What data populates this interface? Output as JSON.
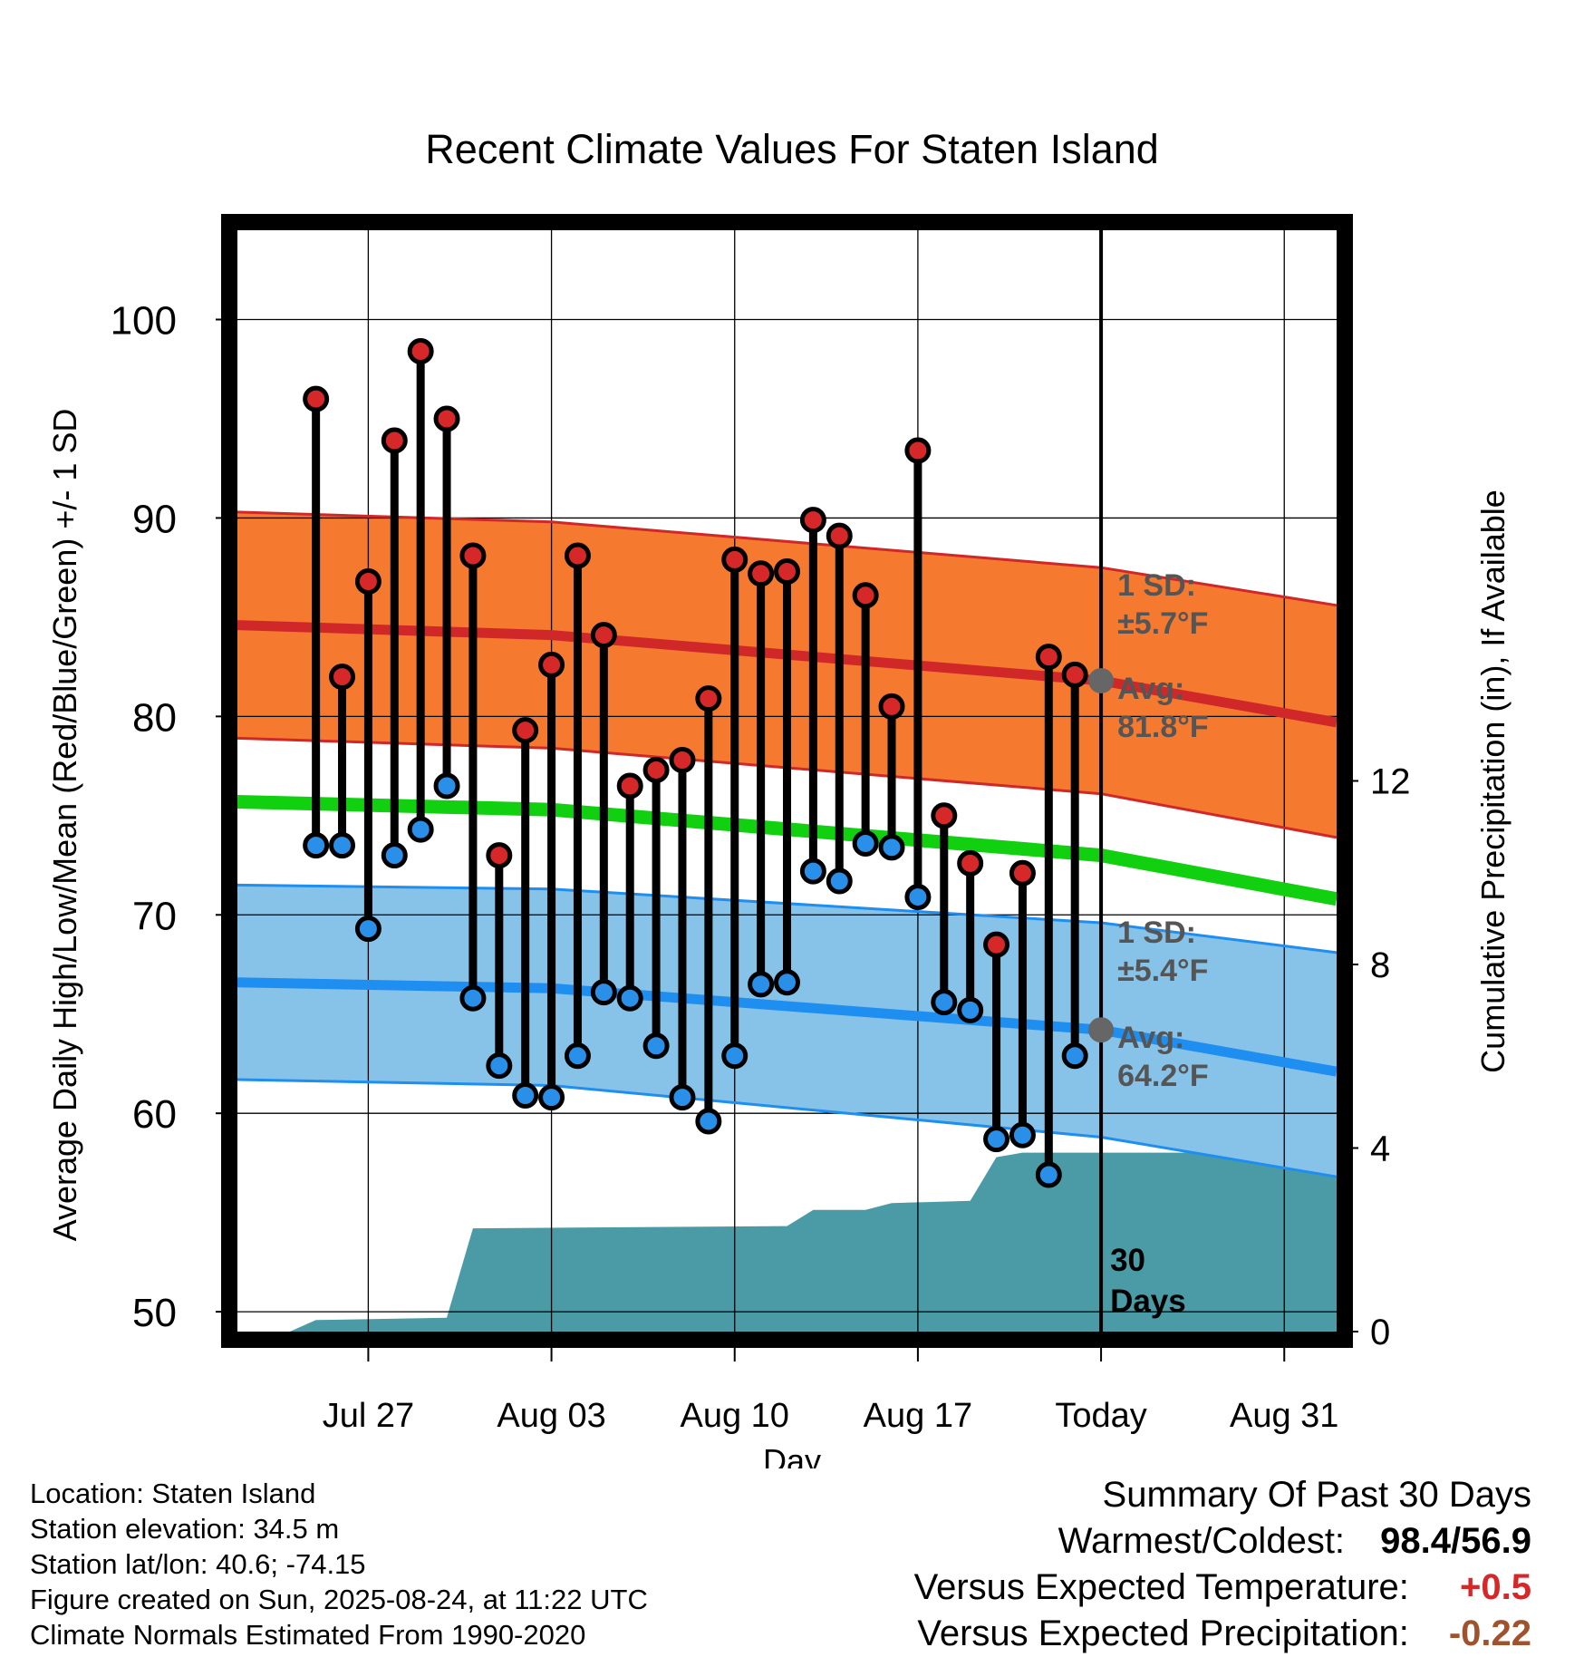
{
  "chart_data": {
    "type": "line",
    "title": "Recent Climate Values For Staten Island",
    "xlabel": "Day",
    "ylabel": "Average Daily High/Low/Mean (Red/Blue/Green) +/- 1 SD",
    "y2label": "Cumulative Precipitation (in), If Available",
    "ylim": [
      49,
      104.5
    ],
    "y2lim": [
      0,
      24
    ],
    "xlim": [
      "2025-07-22",
      "2025-09-02"
    ],
    "yticks": [
      "50",
      "60",
      "70",
      "80",
      "90",
      "100"
    ],
    "y2ticks": [
      "0",
      "4",
      "8",
      "12"
    ],
    "xticks": [
      {
        "date": "2025-07-27",
        "label": "Jul 27"
      },
      {
        "date": "2025-08-03",
        "label": "Aug 03"
      },
      {
        "date": "2025-08-10",
        "label": "Aug 10"
      },
      {
        "date": "2025-08-17",
        "label": "Aug 17"
      },
      {
        "date": "2025-08-24",
        "label": "Today"
      },
      {
        "date": "2025-08-31",
        "label": "Aug 31"
      }
    ],
    "grid": true,
    "today": "2025-08-24",
    "period_label": [
      "30",
      "Days"
    ],
    "normals": {
      "x": [
        "2025-07-21",
        "2025-08-03",
        "2025-08-24",
        "2025-09-02"
      ],
      "high_mean": [
        84.6,
        84.1,
        81.8,
        79.7
      ],
      "high_upper": [
        90.3,
        89.8,
        87.5,
        85.6
      ],
      "high_lower": [
        78.9,
        78.4,
        76.1,
        73.9
      ],
      "low_mean": [
        66.6,
        66.3,
        64.2,
        62.1
      ],
      "low_upper": [
        71.5,
        71.3,
        69.6,
        68.1
      ],
      "low_lower": [
        61.7,
        61.4,
        58.8,
        56.8
      ],
      "mean": [
        75.7,
        75.3,
        73.0,
        70.8
      ]
    },
    "annotations": [
      {
        "label_lines": [
          "1 SD:",
          "±5.7°F"
        ],
        "y": 87.0
      },
      {
        "label_lines": [
          "Avg:",
          "81.8°F"
        ],
        "y": 81.8
      },
      {
        "label_lines": [
          "1 SD:",
          "±5.4°F"
        ],
        "y": 69.5
      },
      {
        "label_lines": [
          "Avg:",
          "64.2°F"
        ],
        "y": 64.2
      }
    ],
    "today_markers": [
      81.8,
      64.2
    ],
    "series": [
      {
        "name": "High",
        "x": [
          "2025-07-25",
          "2025-07-26",
          "2025-07-27",
          "2025-07-28",
          "2025-07-29",
          "2025-07-30",
          "2025-07-31",
          "2025-08-01",
          "2025-08-02",
          "2025-08-03",
          "2025-08-04",
          "2025-08-05",
          "2025-08-06",
          "2025-08-07",
          "2025-08-08",
          "2025-08-09",
          "2025-08-10",
          "2025-08-11",
          "2025-08-12",
          "2025-08-13",
          "2025-08-14",
          "2025-08-15",
          "2025-08-16",
          "2025-08-17",
          "2025-08-18",
          "2025-08-19",
          "2025-08-20",
          "2025-08-21",
          "2025-08-22",
          "2025-08-23"
        ],
        "values": [
          96.0,
          82.0,
          86.8,
          93.9,
          98.4,
          95.0,
          88.1,
          73.0,
          79.3,
          82.6,
          88.1,
          84.1,
          76.5,
          77.3,
          77.8,
          80.9,
          87.9,
          87.2,
          87.3,
          89.9,
          89.1,
          86.1,
          80.5,
          93.4,
          75.0,
          72.6,
          68.5,
          72.1,
          83.0,
          82.1
        ]
      },
      {
        "name": "Low",
        "x": [
          "2025-07-25",
          "2025-07-26",
          "2025-07-27",
          "2025-07-28",
          "2025-07-29",
          "2025-07-30",
          "2025-07-31",
          "2025-08-01",
          "2025-08-02",
          "2025-08-03",
          "2025-08-04",
          "2025-08-05",
          "2025-08-06",
          "2025-08-07",
          "2025-08-08",
          "2025-08-09",
          "2025-08-10",
          "2025-08-11",
          "2025-08-12",
          "2025-08-13",
          "2025-08-14",
          "2025-08-15",
          "2025-08-16",
          "2025-08-17",
          "2025-08-18",
          "2025-08-19",
          "2025-08-20",
          "2025-08-21",
          "2025-08-22",
          "2025-08-23"
        ],
        "values": [
          73.5,
          73.5,
          69.3,
          73.0,
          74.3,
          76.5,
          65.8,
          62.4,
          60.9,
          60.8,
          62.9,
          66.1,
          65.8,
          63.4,
          60.8,
          59.6,
          62.9,
          66.5,
          66.6,
          72.2,
          71.7,
          73.6,
          73.4,
          70.9,
          65.6,
          65.2,
          58.7,
          58.9,
          56.9,
          62.9
        ]
      },
      {
        "name": "Precipitation",
        "x": [
          "2025-07-24",
          "2025-07-25",
          "2025-07-30",
          "2025-07-31",
          "2025-08-12",
          "2025-08-13",
          "2025-08-15",
          "2025-08-16",
          "2025-08-19",
          "2025-08-20",
          "2025-08-21",
          "2025-09-02"
        ],
        "values": [
          0.0,
          0.25,
          0.3,
          2.25,
          2.3,
          2.65,
          2.65,
          2.8,
          2.85,
          3.8,
          3.9,
          3.9
        ]
      }
    ]
  },
  "footer": {
    "location": "Location: Staten Island",
    "elevation": "Station elevation: 34.5 m",
    "latlon": "Station lat/lon: 40.6; -74.15",
    "created": "Figure created on Sun, 2025-08-24, at 11:22 UTC",
    "normals": "Climate Normals Estimated From 1990-2020"
  },
  "summary": {
    "title": "Summary Of Past 30 Days",
    "warm_cold_label": "Warmest/Coldest:",
    "warm_cold_value": "98.4/56.9",
    "temp_label": "Versus Expected Temperature:",
    "temp_value": "+0.5",
    "precip_label": "Versus Expected Precipitation:",
    "precip_value": "-0.22"
  },
  "colors": {
    "high_band": "#f57a30",
    "high_line": "#d02828",
    "low_band": "#87c2e8",
    "low_line": "#1e8ef0",
    "mean_line": "#10d010",
    "precip_fill": "#4a9ba6",
    "high_dot": "#d62828",
    "low_dot": "#2a8fe8",
    "annotation": "#555555",
    "today_marker": "#666666"
  }
}
